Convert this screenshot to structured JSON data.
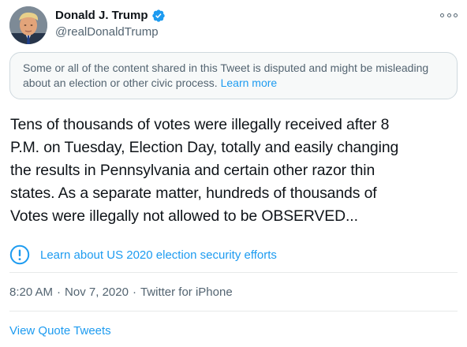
{
  "author": {
    "display_name": "Donald J. Trump",
    "handle": "@realDonaldTrump",
    "verified_icon": "verified-badge-icon",
    "avatar_icon": "avatar-photo"
  },
  "notice": {
    "text": "Some or all of the content shared in this Tweet is disputed and might be misleading about an election or other civic process.",
    "link_label": "Learn more"
  },
  "tweet": {
    "lines": [
      "Tens of thousands of votes were illegally received after 8",
      "P.M. on Tuesday, Election Day, totally and easily changing",
      "the results in Pennsylvania and certain other razor thin",
      "states. As a separate matter, hundreds of thousands of",
      "Votes were illegally not allowed to be OBSERVED..."
    ]
  },
  "election_label": {
    "icon": "exclamation-circle-icon",
    "text": "Learn about US 2020 election security efforts"
  },
  "meta": {
    "time": "8:20 AM",
    "separator": "·",
    "date": "Nov 7, 2020",
    "source": "Twitter for iPhone"
  },
  "actions": {
    "quote_tweets_label": "View Quote Tweets"
  },
  "colors": {
    "accent": "#1d9bf0",
    "text": "#0f1419",
    "secondary": "#536471",
    "notice_bg": "#f7f9f9",
    "border": "#cfd9de"
  }
}
